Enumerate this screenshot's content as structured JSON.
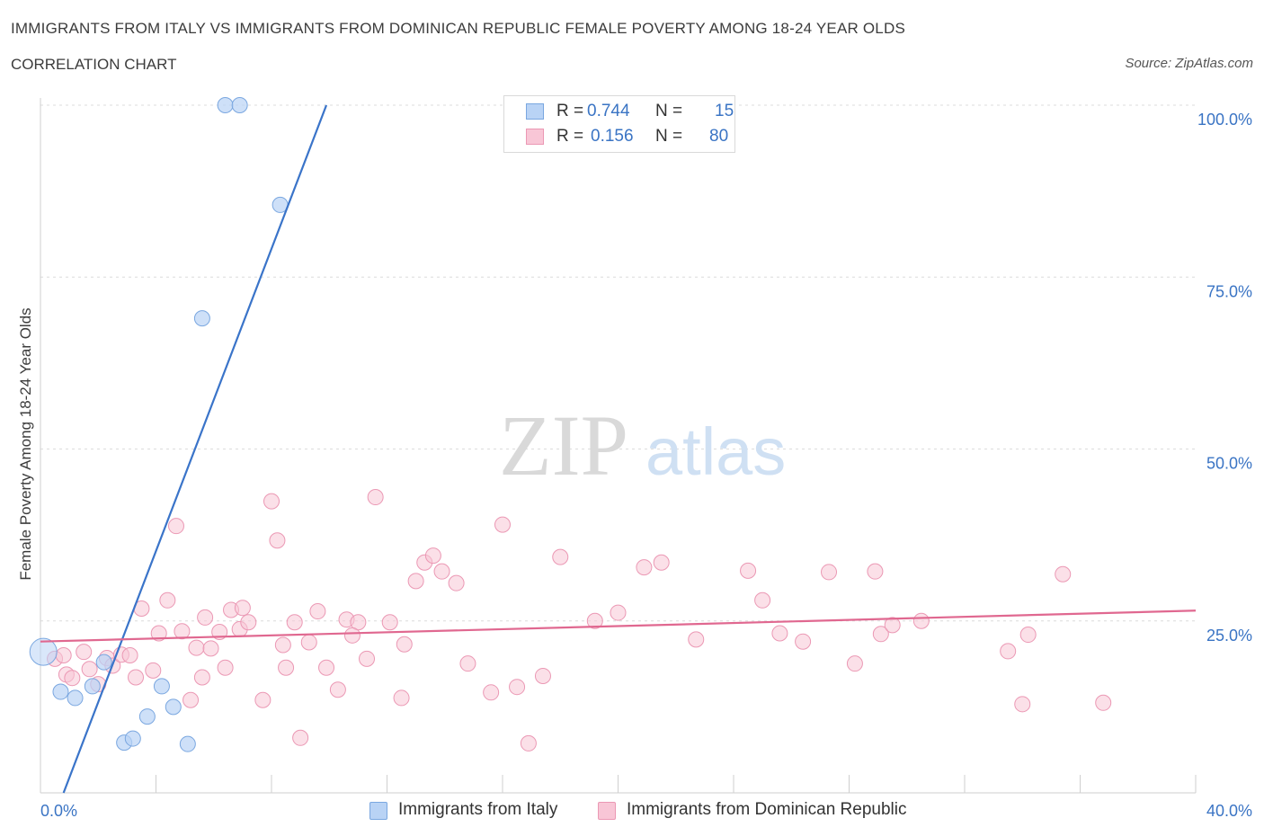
{
  "header": {
    "title": "IMMIGRANTS FROM ITALY VS IMMIGRANTS FROM DOMINICAN REPUBLIC FEMALE POVERTY AMONG 18-24 YEAR OLDS",
    "subtitle": "CORRELATION CHART",
    "source": "Source: ZipAtlas.com"
  },
  "watermark": {
    "zip": "ZIP",
    "atlas": "atlas"
  },
  "legend": {
    "rows": [
      {
        "r_label": "R =",
        "r_value": "0.744",
        "n_label": "N =",
        "n_value": "15"
      },
      {
        "r_label": "R =",
        "r_value": "0.156",
        "n_label": "N =",
        "n_value": "80"
      }
    ]
  },
  "bottom_legend": {
    "items": [
      {
        "label": "Immigrants from Italy"
      },
      {
        "label": "Immigrants from Dominican Republic"
      }
    ]
  },
  "chart_data": {
    "type": "scatter",
    "ylabel": "Female Poverty Among 18-24 Year Olds",
    "xlim": [
      0,
      40
    ],
    "ylim": [
      0,
      100
    ],
    "x_tick_labels": [
      "0.0%",
      "40.0%"
    ],
    "y_ticks": [
      {
        "value": 100,
        "label": "100.0%"
      },
      {
        "value": 75,
        "label": "75.0%"
      },
      {
        "value": 50,
        "label": "50.0%"
      },
      {
        "value": 25,
        "label": "25.0%"
      }
    ],
    "grid": true,
    "legend_position": "top-center",
    "colors": {
      "italy_fill": "#b9d3f5",
      "italy_stroke": "#7aa7e0",
      "italy_line": "#3a74c9",
      "dr_fill": "#f8c6d6",
      "dr_stroke": "#eb98b4",
      "dr_line": "#e06890"
    },
    "series": [
      {
        "name": "Immigrants from Italy",
        "points": [
          [
            0.1,
            20.5
          ],
          [
            0.7,
            14.7
          ],
          [
            1.2,
            13.8
          ],
          [
            1.8,
            15.5
          ],
          [
            2.2,
            19.0
          ],
          [
            2.9,
            7.3
          ],
          [
            3.2,
            7.9
          ],
          [
            3.7,
            11.1
          ],
          [
            4.2,
            15.5
          ],
          [
            4.6,
            12.5
          ],
          [
            5.1,
            7.1
          ],
          [
            5.6,
            69.0
          ],
          [
            6.4,
            100.0
          ],
          [
            6.9,
            100.0
          ],
          [
            8.3,
            85.5
          ]
        ],
        "trendline": {
          "x": [
            0.8,
            9.9
          ],
          "y": [
            0.0,
            100.0
          ]
        }
      },
      {
        "name": "Immigrants from Dominican Republic",
        "points": [
          [
            0.5,
            19.5
          ],
          [
            0.8,
            20.0
          ],
          [
            0.9,
            17.2
          ],
          [
            1.1,
            16.7
          ],
          [
            1.5,
            20.5
          ],
          [
            1.7,
            18.0
          ],
          [
            2.0,
            15.8
          ],
          [
            2.3,
            19.6
          ],
          [
            2.5,
            18.5
          ],
          [
            2.8,
            20.1
          ],
          [
            3.1,
            20.0
          ],
          [
            3.3,
            16.8
          ],
          [
            3.5,
            26.8
          ],
          [
            3.9,
            17.8
          ],
          [
            4.1,
            23.2
          ],
          [
            4.4,
            28.0
          ],
          [
            4.7,
            38.8
          ],
          [
            4.9,
            23.5
          ],
          [
            5.2,
            13.5
          ],
          [
            5.4,
            21.1
          ],
          [
            5.6,
            16.8
          ],
          [
            5.9,
            21.0
          ],
          [
            6.2,
            23.4
          ],
          [
            6.4,
            18.2
          ],
          [
            6.6,
            26.6
          ],
          [
            6.9,
            23.8
          ],
          [
            7.2,
            24.8
          ],
          [
            7.7,
            13.5
          ],
          [
            8.0,
            42.4
          ],
          [
            8.2,
            36.7
          ],
          [
            8.5,
            18.2
          ],
          [
            8.8,
            24.8
          ],
          [
            9.0,
            8.0
          ],
          [
            9.3,
            21.9
          ],
          [
            9.6,
            26.4
          ],
          [
            9.9,
            18.2
          ],
          [
            10.3,
            15.0
          ],
          [
            10.6,
            25.2
          ],
          [
            11.0,
            24.8
          ],
          [
            11.3,
            19.5
          ],
          [
            11.6,
            43.0
          ],
          [
            12.1,
            24.8
          ],
          [
            12.5,
            13.8
          ],
          [
            13.0,
            30.8
          ],
          [
            13.3,
            33.5
          ],
          [
            13.6,
            34.5
          ],
          [
            13.9,
            32.2
          ],
          [
            14.4,
            30.5
          ],
          [
            14.8,
            18.8
          ],
          [
            15.6,
            14.6
          ],
          [
            16.0,
            39.0
          ],
          [
            16.5,
            15.4
          ],
          [
            16.9,
            7.2
          ],
          [
            17.4,
            17.0
          ],
          [
            18.0,
            34.3
          ],
          [
            19.2,
            25.0
          ],
          [
            20.0,
            26.2
          ],
          [
            20.9,
            32.8
          ],
          [
            21.5,
            33.5
          ],
          [
            22.7,
            22.3
          ],
          [
            24.5,
            32.3
          ],
          [
            25.0,
            28.0
          ],
          [
            25.6,
            23.2
          ],
          [
            26.4,
            22.0
          ],
          [
            27.3,
            32.1
          ],
          [
            28.2,
            18.8
          ],
          [
            28.9,
            32.2
          ],
          [
            29.1,
            23.1
          ],
          [
            29.5,
            24.4
          ],
          [
            30.5,
            25.0
          ],
          [
            33.5,
            20.6
          ],
          [
            34.0,
            12.9
          ],
          [
            34.2,
            23.0
          ],
          [
            35.4,
            31.8
          ],
          [
            36.8,
            13.1
          ],
          [
            8.4,
            21.5
          ],
          [
            10.8,
            22.9
          ],
          [
            12.6,
            21.6
          ],
          [
            5.7,
            25.5
          ],
          [
            7.0,
            26.9
          ]
        ],
        "trendline": {
          "x": [
            0.0,
            40.0
          ],
          "y": [
            22.0,
            26.5
          ]
        }
      }
    ]
  }
}
